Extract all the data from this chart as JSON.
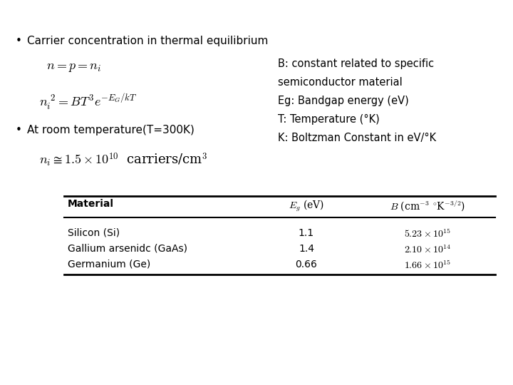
{
  "bg_color": "white",
  "title_bullet": "Carrier concentration in thermal equilibrium",
  "eq1": "$n = p = n_i$",
  "eq2": "$n_i^{\\ 2} = BT^3 e^{-E_G/kT}$",
  "bullet2": "At room temperature(T=300K)",
  "eq3": "$n_i \\cong 1.5 \\times 10^{10}$  carriers/cm$^3$",
  "side_text": [
    "B: constant related to specific",
    "semiconductor material",
    "Eg: Bandgap energy (eV)",
    "T: Temperature (°K)",
    "K: Boltzman Constant in eV/°K"
  ],
  "table_header_col1": "Material",
  "table_header_col2": "$E_g$ (eV)",
  "table_header_col3": "$B$ (cm$^{-3}$ $^{\\circ}$K$^{-3/2}$)",
  "table_rows": [
    [
      "Silicon (Si)",
      "1.1",
      "$5.23 \\times 10^{15}$"
    ],
    [
      "Gallium arsenidc (GaAs)",
      "1.4",
      "$2.10 \\times 10^{14}$"
    ],
    [
      "Germanium (Ge)",
      "0.66",
      "$1.66 \\times 10^{15}$"
    ]
  ],
  "fs_bullet": 11,
  "fs_eq": 13,
  "fs_side": 10.5,
  "fs_table": 10
}
